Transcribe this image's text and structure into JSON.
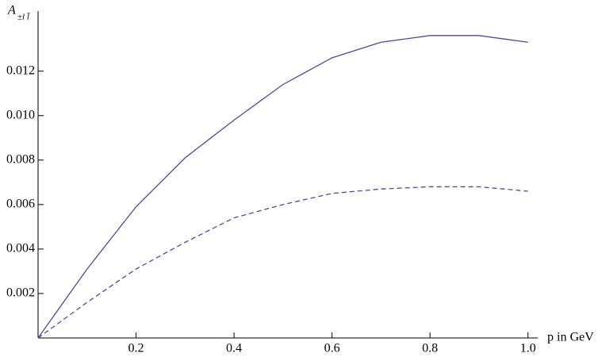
{
  "chart_data": {
    "type": "line",
    "x_label": "p in GeV",
    "y_label": {
      "main": "A",
      "sub": "±l l̄"
    },
    "x": [
      0,
      0.1,
      0.2,
      0.3,
      0.4,
      0.5,
      0.6,
      0.7,
      0.8,
      0.9,
      1.0
    ],
    "series": [
      {
        "color": "#4b4b9b",
        "style": "solid",
        "values": [
          0,
          0.0031,
          0.0059,
          0.0081,
          0.0098,
          0.0114,
          0.0126,
          0.0133,
          0.0136,
          0.0136,
          0.0133
        ]
      },
      {
        "color": "#4b4b9b",
        "style": "dashed",
        "values": [
          0,
          0.0016,
          0.0031,
          0.0043,
          0.0054,
          0.006,
          0.0065,
          0.0067,
          0.0068,
          0.0068,
          0.0066
        ]
      }
    ],
    "xlim": [
      0,
      1.02
    ],
    "ylim": [
      0,
      0.0147
    ],
    "xticks": [
      0.2,
      0.4,
      0.6,
      0.8,
      {
        "value": 1.0,
        "label": "1.0"
      }
    ],
    "yticks": [
      0.002,
      0.004,
      0.006,
      0.008,
      {
        "value": 0.01,
        "label": "0.010"
      },
      0.012
    ]
  }
}
